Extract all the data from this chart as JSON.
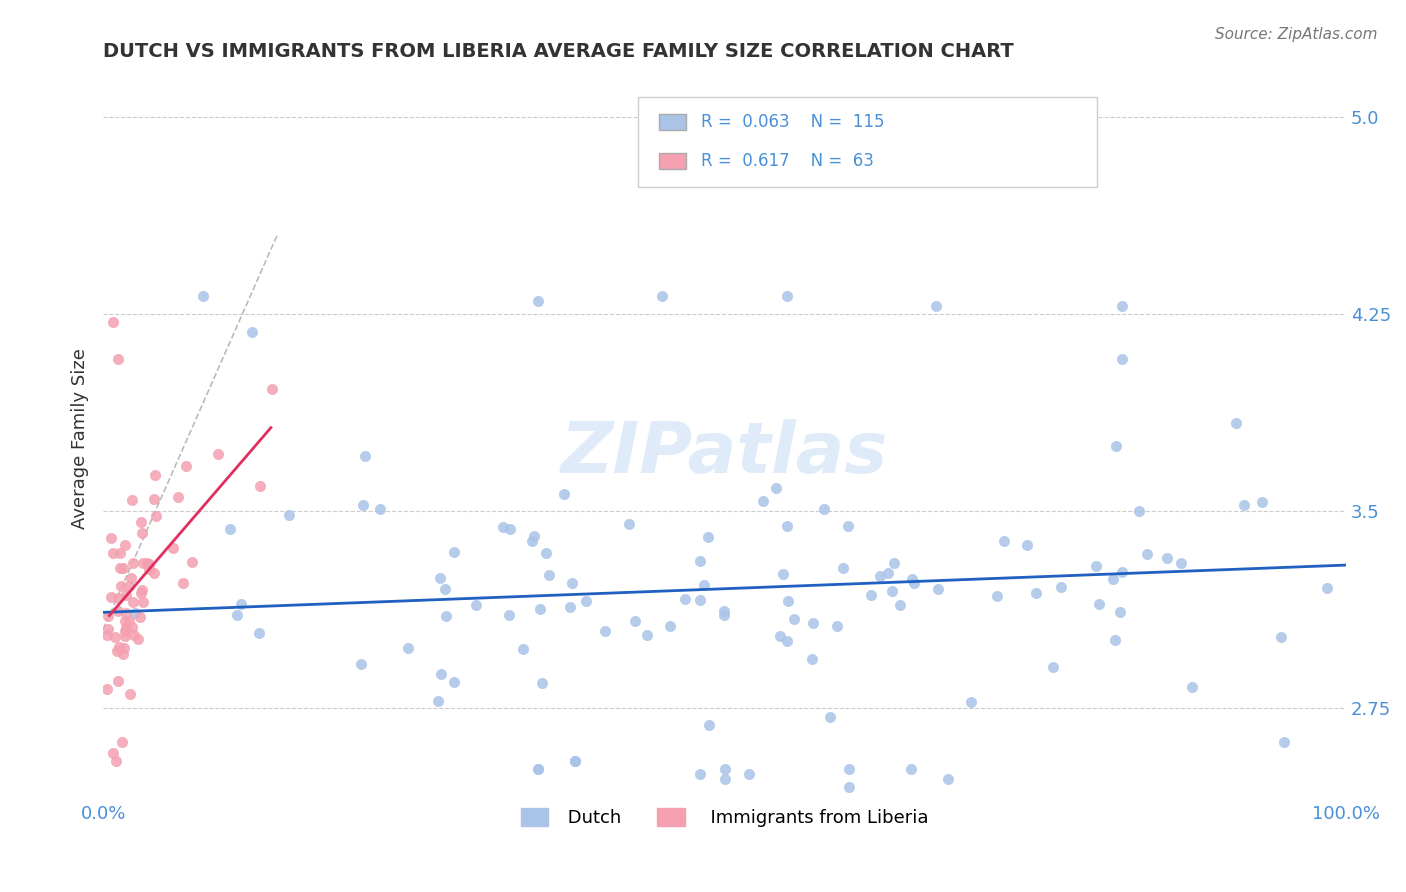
{
  "title": "DUTCH VS IMMIGRANTS FROM LIBERIA AVERAGE FAMILY SIZE CORRELATION CHART",
  "source_text": "Source: ZipAtlas.com",
  "ylabel": "Average Family Size",
  "xlim": [
    0.0,
    1.0
  ],
  "ylim": [
    2.4,
    5.15
  ],
  "yticks": [
    2.75,
    3.5,
    4.25,
    5.0
  ],
  "xtick_labels": [
    "0.0%",
    "100.0%"
  ],
  "dutch_color": "#aac4e8",
  "liberia_color": "#f4a0b0",
  "dutch_R": 0.063,
  "dutch_N": 115,
  "liberia_R": 0.617,
  "liberia_N": 63,
  "dutch_line_color": "#2060c0",
  "liberia_line_color": "#e03060",
  "trend_line_color_dashed": "#bbbbbb",
  "background_color": "#ffffff",
  "grid_color": "#cccccc",
  "title_color": "#333333",
  "axis_label_color": "#4a90d9",
  "watermark": "ZIPatlas"
}
